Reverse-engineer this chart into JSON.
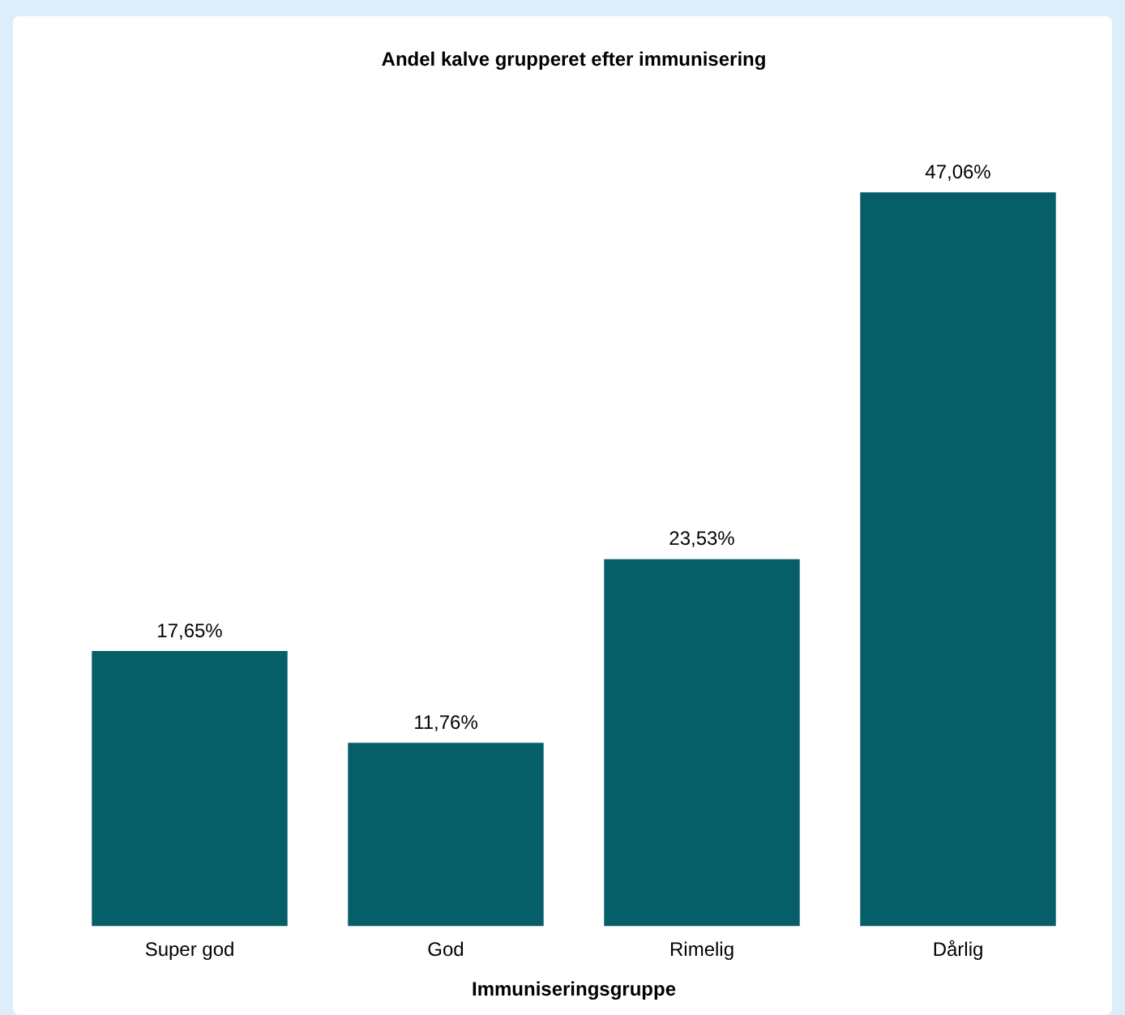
{
  "chart_data": {
    "type": "bar",
    "title": "Andel kalve grupperet efter immunisering",
    "xlabel": "Immuniseringsgruppe",
    "categories": [
      "Super god",
      "God",
      "Rimelig",
      "Dårlig"
    ],
    "values": [
      17.65,
      11.76,
      23.53,
      47.06
    ],
    "value_labels": [
      "17,65%",
      "11,76%",
      "23,53%",
      "47,06%"
    ],
    "color": "#065f68",
    "grid": false,
    "legend": false
  }
}
